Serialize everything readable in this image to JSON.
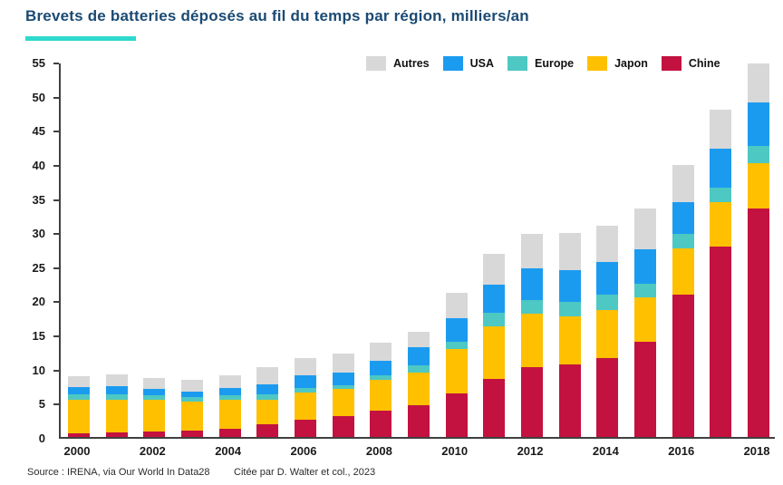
{
  "page": {
    "title": "Brevets de batteries déposés au fil du temps par région, milliers/an",
    "footer": {
      "source": "Source : IRENA, via Our World In Data28",
      "citation": "Citée par D. Walter et col., 2023"
    }
  },
  "colors": {
    "title": "#1b4a73",
    "title_underline": "#2ed9ce",
    "axis": "#404040",
    "tick_label": "#1a1a1a",
    "chine": "#c31240",
    "japon": "#ffc000",
    "europe": "#4dc8c3",
    "usa": "#1b9bf0",
    "autres": "#d8d8d8"
  },
  "chart_data": {
    "type": "bar",
    "stacked": true,
    "title": "Brevets de batteries déposés au fil du temps par région, milliers/an",
    "unit": "milliers/an",
    "categories": [
      2000,
      2001,
      2002,
      2003,
      2004,
      2005,
      2006,
      2007,
      2008,
      2009,
      2010,
      2011,
      2012,
      2013,
      2014,
      2015,
      2016,
      2017,
      2018
    ],
    "x_tick_labels": [
      "2000",
      "2002",
      "2004",
      "2006",
      "2008",
      "2010",
      "2012",
      "2014",
      "2016",
      "2018"
    ],
    "ylim": [
      0,
      55
    ],
    "y_ticks": [
      0,
      5,
      10,
      15,
      20,
      25,
      30,
      35,
      40,
      45,
      50,
      55
    ],
    "grid": false,
    "legend_position": "top",
    "legend_order": [
      "Autres",
      "USA",
      "Europe",
      "Japon",
      "Chine"
    ],
    "series": [
      {
        "name": "Chine",
        "color_key": "chine",
        "values": [
          0.5,
          0.6,
          0.8,
          0.9,
          1.2,
          1.9,
          2.5,
          3.0,
          3.9,
          4.7,
          6.4,
          8.5,
          10.2,
          10.6,
          11.6,
          13.9,
          20.8,
          27.9,
          33.5
        ]
      },
      {
        "name": "Japon",
        "color_key": "japon",
        "values": [
          4.9,
          4.9,
          4.6,
          4.3,
          4.2,
          3.6,
          4.0,
          4.0,
          4.5,
          4.8,
          6.5,
          7.7,
          7.9,
          7.1,
          7.0,
          6.5,
          6.9,
          6.5,
          6.6
        ]
      },
      {
        "name": "Europe",
        "color_key": "europe",
        "values": [
          0.8,
          0.8,
          0.7,
          0.6,
          0.7,
          0.8,
          0.7,
          0.6,
          0.6,
          1.0,
          1.1,
          2.0,
          2.0,
          2.1,
          2.2,
          2.1,
          2.0,
          2.2,
          2.6
        ]
      },
      {
        "name": "USA",
        "color_key": "usa",
        "values": [
          1.1,
          1.1,
          1.0,
          0.9,
          1.1,
          1.4,
          1.8,
          1.8,
          2.2,
          2.6,
          3.4,
          4.1,
          4.6,
          4.7,
          4.8,
          5.0,
          4.7,
          5.7,
          6.3
        ]
      },
      {
        "name": "Autres",
        "color_key": "autres",
        "values": [
          1.6,
          1.8,
          1.5,
          1.7,
          1.9,
          2.5,
          2.6,
          2.8,
          2.6,
          2.3,
          3.7,
          4.5,
          5.0,
          5.4,
          5.4,
          6.0,
          5.4,
          5.6,
          5.8
        ]
      }
    ]
  }
}
